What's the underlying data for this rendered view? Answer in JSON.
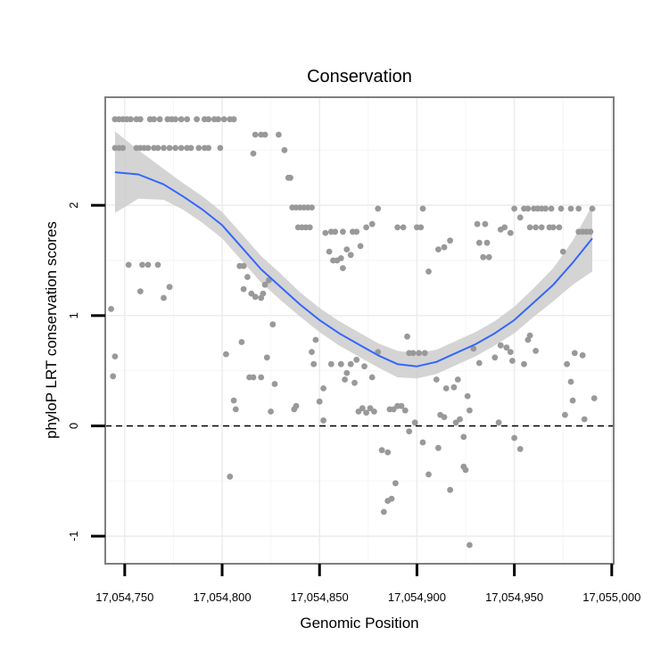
{
  "chart_data": {
    "type": "scatter",
    "title": "Conservation",
    "xlabel": "Genomic Position",
    "ylabel": "phyloP LRT conservation scores",
    "xlim": [
      17054740,
      17055001
    ],
    "ylim": [
      -1.25,
      2.98
    ],
    "x_ticks": [
      17054750,
      17054800,
      17054850,
      17054900,
      17054950,
      17055000
    ],
    "x_tick_labels": [
      "17,054,750",
      "17,054,800",
      "17,054,850",
      "17,054,900",
      "17,054,950",
      "17,055,000"
    ],
    "y_ticks": [
      -1,
      0,
      1,
      2
    ],
    "y_tick_labels": [
      "-1",
      "0",
      "1",
      "2"
    ],
    "grid": true,
    "reference_line": {
      "y": 0,
      "style": "dashed"
    },
    "points": [
      {
        "x": 17054745,
        "y": 2.78
      },
      {
        "x": 17054747,
        "y": 2.78
      },
      {
        "x": 17054749,
        "y": 2.78
      },
      {
        "x": 17054751,
        "y": 2.78
      },
      {
        "x": 17054753,
        "y": 2.78
      },
      {
        "x": 17054756,
        "y": 2.78
      },
      {
        "x": 17054758,
        "y": 2.78
      },
      {
        "x": 17054763,
        "y": 2.78
      },
      {
        "x": 17054765,
        "y": 2.78
      },
      {
        "x": 17054768,
        "y": 2.78
      },
      {
        "x": 17054772,
        "y": 2.78
      },
      {
        "x": 17054774,
        "y": 2.78
      },
      {
        "x": 17054776,
        "y": 2.78
      },
      {
        "x": 17054779,
        "y": 2.78
      },
      {
        "x": 17054782,
        "y": 2.78
      },
      {
        "x": 17054787,
        "y": 2.78
      },
      {
        "x": 17054791,
        "y": 2.78
      },
      {
        "x": 17054793,
        "y": 2.78
      },
      {
        "x": 17054796,
        "y": 2.78
      },
      {
        "x": 17054798,
        "y": 2.78
      },
      {
        "x": 17054801,
        "y": 2.78
      },
      {
        "x": 17054804,
        "y": 2.78
      },
      {
        "x": 17054806,
        "y": 2.78
      },
      {
        "x": 17054745,
        "y": 2.52
      },
      {
        "x": 17054747,
        "y": 2.52
      },
      {
        "x": 17054749,
        "y": 2.52
      },
      {
        "x": 17054756,
        "y": 2.52
      },
      {
        "x": 17054758,
        "y": 2.52
      },
      {
        "x": 17054760,
        "y": 2.52
      },
      {
        "x": 17054762,
        "y": 2.52
      },
      {
        "x": 17054765,
        "y": 2.52
      },
      {
        "x": 17054767,
        "y": 2.52
      },
      {
        "x": 17054770,
        "y": 2.52
      },
      {
        "x": 17054773,
        "y": 2.52
      },
      {
        "x": 17054776,
        "y": 2.52
      },
      {
        "x": 17054779,
        "y": 2.52
      },
      {
        "x": 17054782,
        "y": 2.52
      },
      {
        "x": 17054784,
        "y": 2.52
      },
      {
        "x": 17054788,
        "y": 2.52
      },
      {
        "x": 17054791,
        "y": 2.52
      },
      {
        "x": 17054793,
        "y": 2.52
      },
      {
        "x": 17054799,
        "y": 2.52
      },
      {
        "x": 17054817,
        "y": 2.64
      },
      {
        "x": 17054820,
        "y": 2.64
      },
      {
        "x": 17054822,
        "y": 2.64
      },
      {
        "x": 17054829,
        "y": 2.64
      },
      {
        "x": 17054816,
        "y": 2.47
      },
      {
        "x": 17054832,
        "y": 2.5
      },
      {
        "x": 17054834,
        "y": 2.25
      },
      {
        "x": 17054835,
        "y": 2.25
      },
      {
        "x": 17054836,
        "y": 1.98
      },
      {
        "x": 17054838,
        "y": 1.98
      },
      {
        "x": 17054840,
        "y": 1.98
      },
      {
        "x": 17054842,
        "y": 1.98
      },
      {
        "x": 17054844,
        "y": 1.98
      },
      {
        "x": 17054846,
        "y": 1.98
      },
      {
        "x": 17054839,
        "y": 1.8
      },
      {
        "x": 17054841,
        "y": 1.8
      },
      {
        "x": 17054843,
        "y": 1.8
      },
      {
        "x": 17054845,
        "y": 1.8
      },
      {
        "x": 17054853,
        "y": 1.75
      },
      {
        "x": 17054856,
        "y": 1.76
      },
      {
        "x": 17054858,
        "y": 1.76
      },
      {
        "x": 17054862,
        "y": 1.76
      },
      {
        "x": 17054864,
        "y": 1.6
      },
      {
        "x": 17054867,
        "y": 1.76
      },
      {
        "x": 17054869,
        "y": 1.76
      },
      {
        "x": 17054871,
        "y": 1.63
      },
      {
        "x": 17054874,
        "y": 1.8
      },
      {
        "x": 17054877,
        "y": 1.83
      },
      {
        "x": 17054880,
        "y": 1.97
      },
      {
        "x": 17054855,
        "y": 1.58
      },
      {
        "x": 17054857,
        "y": 1.5
      },
      {
        "x": 17054859,
        "y": 1.5
      },
      {
        "x": 17054861,
        "y": 1.52
      },
      {
        "x": 17054866,
        "y": 1.55
      },
      {
        "x": 17054862,
        "y": 1.43
      },
      {
        "x": 17054890,
        "y": 1.8
      },
      {
        "x": 17054893,
        "y": 1.8
      },
      {
        "x": 17054900,
        "y": 1.8
      },
      {
        "x": 17054902,
        "y": 1.8
      },
      {
        "x": 17054903,
        "y": 1.97
      },
      {
        "x": 17054906,
        "y": 1.4
      },
      {
        "x": 17054911,
        "y": 1.6
      },
      {
        "x": 17054914,
        "y": 1.62
      },
      {
        "x": 17054917,
        "y": 1.68
      },
      {
        "x": 17054931,
        "y": 1.83
      },
      {
        "x": 17054935,
        "y": 1.83
      },
      {
        "x": 17054932,
        "y": 1.66
      },
      {
        "x": 17054936,
        "y": 1.66
      },
      {
        "x": 17054934,
        "y": 1.53
      },
      {
        "x": 17054937,
        "y": 1.53
      },
      {
        "x": 17054943,
        "y": 1.78
      },
      {
        "x": 17054945,
        "y": 1.8
      },
      {
        "x": 17054948,
        "y": 1.75
      },
      {
        "x": 17054950,
        "y": 1.97
      },
      {
        "x": 17054953,
        "y": 1.89
      },
      {
        "x": 17054955,
        "y": 1.97
      },
      {
        "x": 17054957,
        "y": 1.97
      },
      {
        "x": 17054960,
        "y": 1.97
      },
      {
        "x": 17054962,
        "y": 1.97
      },
      {
        "x": 17054964,
        "y": 1.97
      },
      {
        "x": 17054966,
        "y": 1.97
      },
      {
        "x": 17054969,
        "y": 1.97
      },
      {
        "x": 17054974,
        "y": 1.97
      },
      {
        "x": 17054979,
        "y": 1.97
      },
      {
        "x": 17054983,
        "y": 1.97
      },
      {
        "x": 17054990,
        "y": 1.97
      },
      {
        "x": 17054958,
        "y": 1.8
      },
      {
        "x": 17054961,
        "y": 1.8
      },
      {
        "x": 17054964,
        "y": 1.8
      },
      {
        "x": 17054968,
        "y": 1.8
      },
      {
        "x": 17054970,
        "y": 1.8
      },
      {
        "x": 17054973,
        "y": 1.8
      },
      {
        "x": 17054983,
        "y": 1.76
      },
      {
        "x": 17054985,
        "y": 1.76
      },
      {
        "x": 17054987,
        "y": 1.76
      },
      {
        "x": 17054989,
        "y": 1.76
      },
      {
        "x": 17054975,
        "y": 1.58
      },
      {
        "x": 17054743,
        "y": 1.06
      },
      {
        "x": 17054745,
        "y": 0.63
      },
      {
        "x": 17054744,
        "y": 0.45
      },
      {
        "x": 17054752,
        "y": 1.46
      },
      {
        "x": 17054759,
        "y": 1.46
      },
      {
        "x": 17054762,
        "y": 1.46
      },
      {
        "x": 17054767,
        "y": 1.46
      },
      {
        "x": 17054758,
        "y": 1.22
      },
      {
        "x": 17054770,
        "y": 1.16
      },
      {
        "x": 17054773,
        "y": 1.26
      },
      {
        "x": 17054809,
        "y": 1.45
      },
      {
        "x": 17054811,
        "y": 1.45
      },
      {
        "x": 17054813,
        "y": 1.35
      },
      {
        "x": 17054811,
        "y": 1.24
      },
      {
        "x": 17054815,
        "y": 1.2
      },
      {
        "x": 17054817,
        "y": 1.17
      },
      {
        "x": 17054820,
        "y": 1.16
      },
      {
        "x": 17054822,
        "y": 1.28
      },
      {
        "x": 17054824,
        "y": 1.32
      },
      {
        "x": 17054821,
        "y": 1.2
      },
      {
        "x": 17054826,
        "y": 0.92
      },
      {
        "x": 17054802,
        "y": 0.65
      },
      {
        "x": 17054810,
        "y": 0.76
      },
      {
        "x": 17054814,
        "y": 0.44
      },
      {
        "x": 17054816,
        "y": 0.44
      },
      {
        "x": 17054820,
        "y": 0.44
      },
      {
        "x": 17054823,
        "y": 0.62
      },
      {
        "x": 17054827,
        "y": 0.38
      },
      {
        "x": 17054806,
        "y": 0.23
      },
      {
        "x": 17054807,
        "y": 0.15
      },
      {
        "x": 17054825,
        "y": 0.13
      },
      {
        "x": 17054837,
        "y": 0.15
      },
      {
        "x": 17054838,
        "y": 0.18
      },
      {
        "x": 17054804,
        "y": -0.46
      },
      {
        "x": 17054846,
        "y": 0.67
      },
      {
        "x": 17054848,
        "y": 0.78
      },
      {
        "x": 17054847,
        "y": 0.56
      },
      {
        "x": 17054852,
        "y": 0.34
      },
      {
        "x": 17054856,
        "y": 0.56
      },
      {
        "x": 17054861,
        "y": 0.56
      },
      {
        "x": 17054864,
        "y": 0.48
      },
      {
        "x": 17054866,
        "y": 0.56
      },
      {
        "x": 17054869,
        "y": 0.6
      },
      {
        "x": 17054863,
        "y": 0.42
      },
      {
        "x": 17054873,
        "y": 0.54
      },
      {
        "x": 17054877,
        "y": 0.44
      },
      {
        "x": 17054880,
        "y": 0.67
      },
      {
        "x": 17054850,
        "y": 0.22
      },
      {
        "x": 17054852,
        "y": 0.05
      },
      {
        "x": 17054868,
        "y": 0.39
      },
      {
        "x": 17054870,
        "y": 0.13
      },
      {
        "x": 17054872,
        "y": 0.16
      },
      {
        "x": 17054874,
        "y": 0.12
      },
      {
        "x": 17054876,
        "y": 0.16
      },
      {
        "x": 17054878,
        "y": 0.13
      },
      {
        "x": 17054882,
        "y": -0.22
      },
      {
        "x": 17054885,
        "y": -0.24
      },
      {
        "x": 17054883,
        "y": -0.78
      },
      {
        "x": 17054885,
        "y": -0.68
      },
      {
        "x": 17054887,
        "y": -0.66
      },
      {
        "x": 17054889,
        "y": -0.52
      },
      {
        "x": 17054886,
        "y": 0.15
      },
      {
        "x": 17054888,
        "y": 0.15
      },
      {
        "x": 17054890,
        "y": 0.18
      },
      {
        "x": 17054892,
        "y": 0.18
      },
      {
        "x": 17054894,
        "y": 0.14
      },
      {
        "x": 17054896,
        "y": -0.05
      },
      {
        "x": 17054899,
        "y": 0.03
      },
      {
        "x": 17054903,
        "y": -0.15
      },
      {
        "x": 17054906,
        "y": -0.44
      },
      {
        "x": 17054911,
        "y": -0.2
      },
      {
        "x": 17054895,
        "y": 0.81
      },
      {
        "x": 17054896,
        "y": 0.66
      },
      {
        "x": 17054898,
        "y": 0.66
      },
      {
        "x": 17054901,
        "y": 0.66
      },
      {
        "x": 17054904,
        "y": 0.66
      },
      {
        "x": 17054910,
        "y": 0.42
      },
      {
        "x": 17054912,
        "y": 0.1
      },
      {
        "x": 17054914,
        "y": 0.08
      },
      {
        "x": 17054915,
        "y": 0.34
      },
      {
        "x": 17054917,
        "y": -0.58
      },
      {
        "x": 17054919,
        "y": 0.35
      },
      {
        "x": 17054921,
        "y": 0.42
      },
      {
        "x": 17054920,
        "y": 0.03
      },
      {
        "x": 17054922,
        "y": 0.06
      },
      {
        "x": 17054924,
        "y": -0.37
      },
      {
        "x": 17054925,
        "y": -0.4
      },
      {
        "x": 17054926,
        "y": 0.27
      },
      {
        "x": 17054927,
        "y": 0.14
      },
      {
        "x": 17054924,
        "y": -0.1
      },
      {
        "x": 17054927,
        "y": -1.08
      },
      {
        "x": 17054929,
        "y": 0.7
      },
      {
        "x": 17054932,
        "y": 0.57
      },
      {
        "x": 17054940,
        "y": 0.62
      },
      {
        "x": 17054943,
        "y": 0.73
      },
      {
        "x": 17054946,
        "y": 0.71
      },
      {
        "x": 17054949,
        "y": 0.59
      },
      {
        "x": 17054948,
        "y": 0.67
      },
      {
        "x": 17054942,
        "y": 0.03
      },
      {
        "x": 17054950,
        "y": -0.11
      },
      {
        "x": 17054953,
        "y": -0.21
      },
      {
        "x": 17054955,
        "y": 0.56
      },
      {
        "x": 17054957,
        "y": 0.78
      },
      {
        "x": 17054958,
        "y": 0.82
      },
      {
        "x": 17054961,
        "y": 0.68
      },
      {
        "x": 17054977,
        "y": 0.56
      },
      {
        "x": 17054981,
        "y": 0.66
      },
      {
        "x": 17054985,
        "y": 0.64
      },
      {
        "x": 17054979,
        "y": 0.4
      },
      {
        "x": 17054980,
        "y": 0.23
      },
      {
        "x": 17054976,
        "y": 0.1
      },
      {
        "x": 17054986,
        "y": 0.06
      },
      {
        "x": 17054991,
        "y": 0.25
      }
    ],
    "smooth": {
      "color": "#3366ff",
      "band_color": "#cccccc",
      "points": [
        {
          "x": 17054745,
          "y": 2.3,
          "lo": 1.93,
          "hi": 2.67
        },
        {
          "x": 17054757,
          "y": 2.28,
          "lo": 2.06,
          "hi": 2.5
        },
        {
          "x": 17054770,
          "y": 2.19,
          "lo": 2.05,
          "hi": 2.33
        },
        {
          "x": 17054780,
          "y": 2.08,
          "lo": 1.96,
          "hi": 2.2
        },
        {
          "x": 17054790,
          "y": 1.96,
          "lo": 1.84,
          "hi": 2.08
        },
        {
          "x": 17054800,
          "y": 1.82,
          "lo": 1.7,
          "hi": 1.94
        },
        {
          "x": 17054810,
          "y": 1.62,
          "lo": 1.5,
          "hi": 1.74
        },
        {
          "x": 17054820,
          "y": 1.42,
          "lo": 1.3,
          "hi": 1.54
        },
        {
          "x": 17054830,
          "y": 1.26,
          "lo": 1.14,
          "hi": 1.38
        },
        {
          "x": 17054840,
          "y": 1.1,
          "lo": 0.99,
          "hi": 1.21
        },
        {
          "x": 17054850,
          "y": 0.96,
          "lo": 0.85,
          "hi": 1.07
        },
        {
          "x": 17054860,
          "y": 0.84,
          "lo": 0.73,
          "hi": 0.95
        },
        {
          "x": 17054870,
          "y": 0.74,
          "lo": 0.63,
          "hi": 0.85
        },
        {
          "x": 17054880,
          "y": 0.64,
          "lo": 0.53,
          "hi": 0.75
        },
        {
          "x": 17054890,
          "y": 0.56,
          "lo": 0.44,
          "hi": 0.68
        },
        {
          "x": 17054900,
          "y": 0.54,
          "lo": 0.43,
          "hi": 0.66
        },
        {
          "x": 17054910,
          "y": 0.58,
          "lo": 0.47,
          "hi": 0.69
        },
        {
          "x": 17054920,
          "y": 0.66,
          "lo": 0.55,
          "hi": 0.77
        },
        {
          "x": 17054930,
          "y": 0.74,
          "lo": 0.63,
          "hi": 0.85
        },
        {
          "x": 17054940,
          "y": 0.84,
          "lo": 0.73,
          "hi": 0.95
        },
        {
          "x": 17054950,
          "y": 0.96,
          "lo": 0.84,
          "hi": 1.08
        },
        {
          "x": 17054960,
          "y": 1.12,
          "lo": 0.99,
          "hi": 1.25
        },
        {
          "x": 17054970,
          "y": 1.28,
          "lo": 1.13,
          "hi": 1.43
        },
        {
          "x": 17054980,
          "y": 1.48,
          "lo": 1.28,
          "hi": 1.68
        },
        {
          "x": 17054990,
          "y": 1.7,
          "lo": 1.4,
          "hi": 2.0
        }
      ]
    }
  },
  "colors": {
    "point": "#999999",
    "panel_border": "#7f7f7f",
    "grid_major": "#ececec",
    "grid_minor": "#f6f6f6"
  }
}
